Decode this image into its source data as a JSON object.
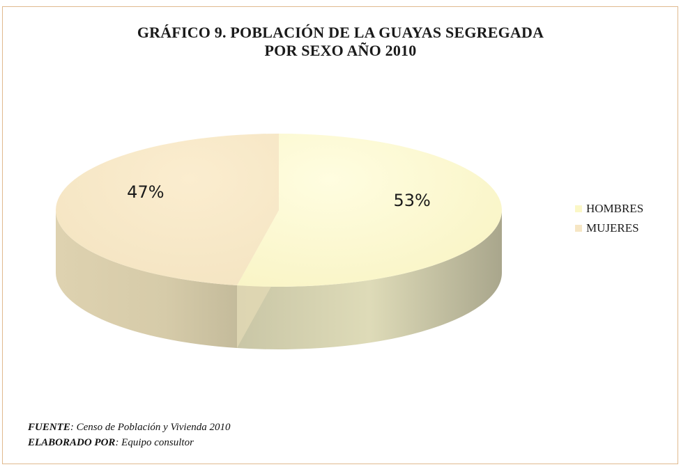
{
  "chart_data": {
    "type": "pie",
    "title_lines": [
      "GRÁFICO 9. POBLACIÓN DE LA GUAYAS SEGREGADA",
      "POR SEXO AÑO 2010"
    ],
    "categories": [
      "HOMBRES",
      "MUJERES"
    ],
    "values": [
      53,
      47
    ],
    "data_labels": [
      "53%",
      "47%"
    ],
    "colors": {
      "HOMBRES": "#fbf7c6",
      "MUJERES": "#f6e6c4"
    },
    "legend_position": "right",
    "style": "3d"
  },
  "footer": {
    "source_label": "FUENTE",
    "source_text": ": Censo de Población  y Vivienda 2010",
    "author_label": "ELABORADO POR",
    "author_text": ": Equipo consultor"
  }
}
